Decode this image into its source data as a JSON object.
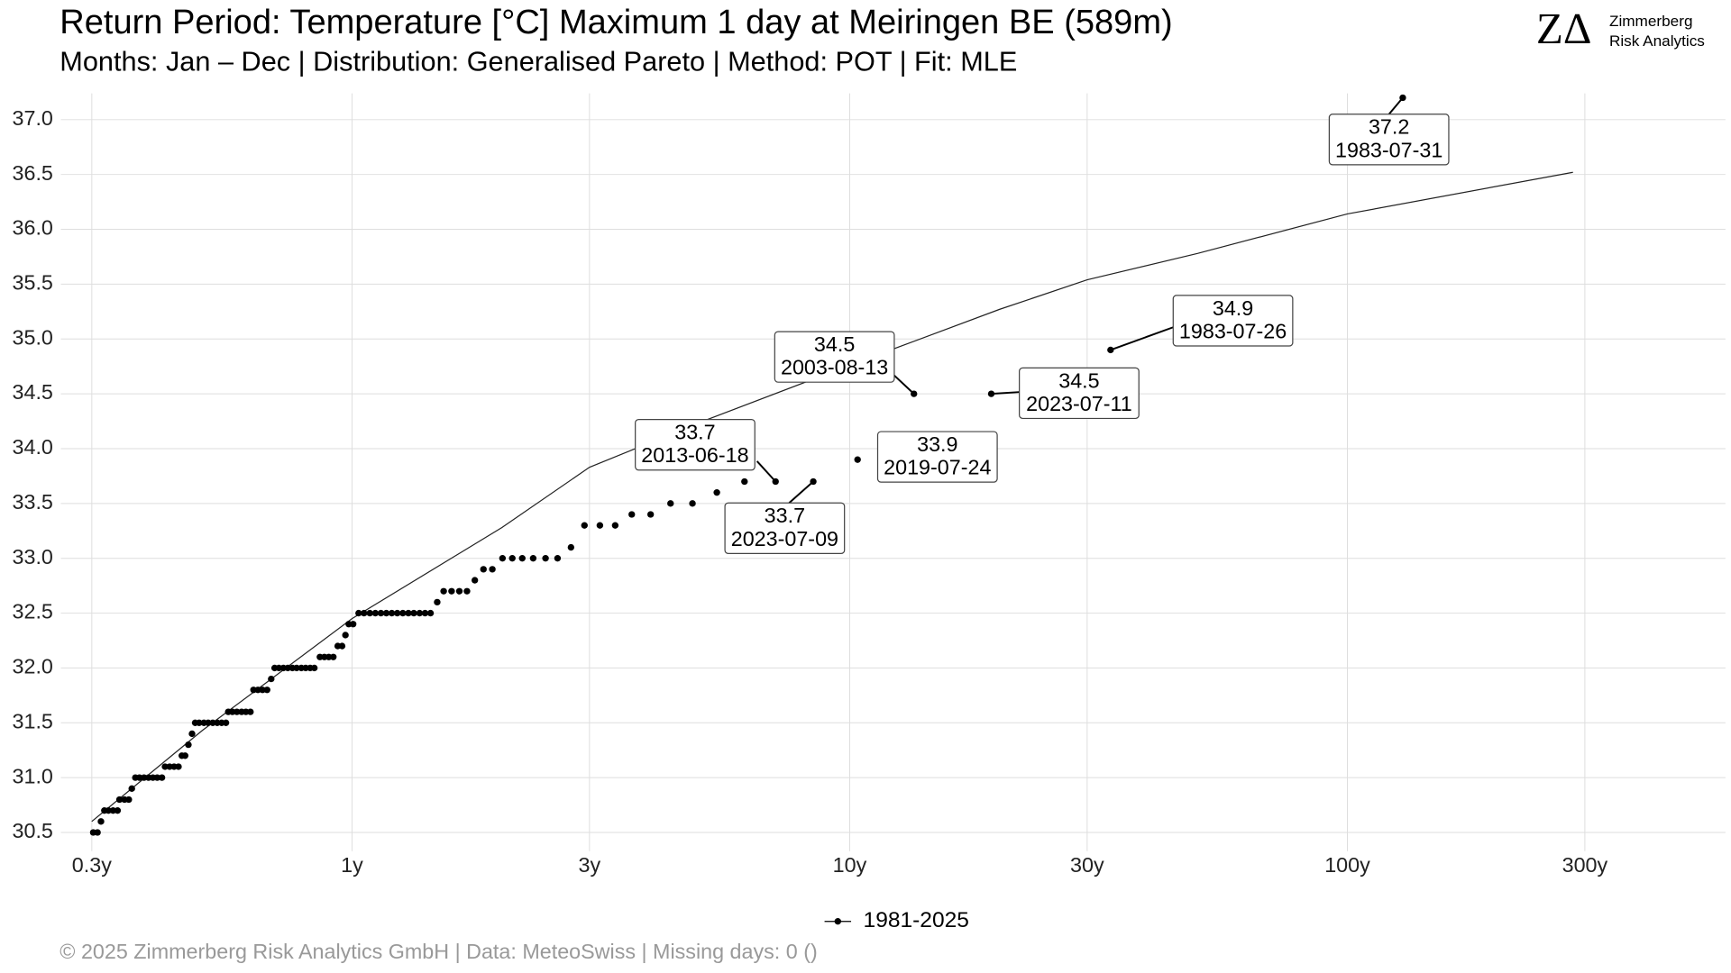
{
  "chart_data": {
    "type": "scatter",
    "title": "Return Period: Temperature [°C] Maximum 1 day at Meiringen  BE (589m)",
    "subtitle": "Months: Jan – Dec | Distribution: Generalised Pareto | Method: POT | Fit: MLE",
    "footer": "©  2025 Zimmerberg Risk Analytics GmbH | Data: MeteoSwiss | Missing days: 0 ()",
    "logo": {
      "mark": "ZΔ",
      "line1": "Zimmerberg",
      "line2": "Risk Analytics"
    },
    "x_log": true,
    "grid": true,
    "legend": "bottom",
    "xlim": [
      0.26,
      575
    ],
    "ylim": [
      30.33,
      37.24
    ],
    "xticks": [
      {
        "value": 0.3,
        "label": "0.3y"
      },
      {
        "value": 1,
        "label": "1y"
      },
      {
        "value": 3,
        "label": "3y"
      },
      {
        "value": 10,
        "label": "10y"
      },
      {
        "value": 30,
        "label": "30y"
      },
      {
        "value": 100,
        "label": "100y"
      },
      {
        "value": 300,
        "label": "300y"
      }
    ],
    "yticks": [
      30.5,
      {
        "value": 31,
        "label": "31.0"
      },
      31.5,
      {
        "value": 32,
        "label": "32.0"
      },
      32.5,
      {
        "value": 33,
        "label": "33.0"
      },
      33.5,
      {
        "value": 34,
        "label": "34.0"
      },
      34.5,
      {
        "value": 35,
        "label": "35.0"
      },
      35.5,
      {
        "value": 36,
        "label": "36.0"
      },
      36.5,
      {
        "value": 37,
        "label": "37.0"
      }
    ],
    "series": [
      {
        "name": "1981-2025",
        "color": "#000000",
        "x": [
          0.302,
          0.308,
          0.313,
          0.318,
          0.324,
          0.331,
          0.338,
          0.341,
          0.349,
          0.356,
          0.361,
          0.367,
          0.374,
          0.382,
          0.39,
          0.398,
          0.406,
          0.415,
          0.421,
          0.43,
          0.439,
          0.448,
          0.455,
          0.462,
          0.469,
          0.477,
          0.484,
          0.493,
          0.504,
          0.514,
          0.525,
          0.536,
          0.547,
          0.558,
          0.564,
          0.575,
          0.587,
          0.6,
          0.612,
          0.625,
          0.634,
          0.647,
          0.661,
          0.675,
          0.688,
          0.699,
          0.713,
          0.728,
          0.743,
          0.759,
          0.774,
          0.791,
          0.807,
          0.824,
          0.84,
          0.862,
          0.88,
          0.898,
          0.917,
          0.936,
          0.955,
          0.97,
          0.985,
          1.005,
          1.031,
          1.057,
          1.086,
          1.114,
          1.143,
          1.172,
          1.202,
          1.233,
          1.265,
          1.298,
          1.331,
          1.367,
          1.402,
          1.438,
          1.483,
          1.528,
          1.585,
          1.643,
          1.702,
          1.765,
          1.837,
          1.914,
          2.006,
          2.099,
          2.198,
          2.312,
          2.448,
          2.588,
          2.754,
          2.931,
          3.148,
          3.379,
          3.648,
          3.981,
          4.365,
          4.831,
          5.408,
          6.146,
          7.096,
          8.449,
          10.37,
          13.46,
          19.25,
          33.43,
          129.2
        ],
        "values": [
          30.5,
          30.5,
          30.6,
          30.7,
          30.7,
          30.7,
          30.7,
          30.8,
          30.8,
          30.8,
          30.9,
          31.0,
          31.0,
          31.0,
          31.0,
          31.0,
          31.0,
          31.0,
          31.1,
          31.1,
          31.1,
          31.1,
          31.2,
          31.2,
          31.3,
          31.4,
          31.5,
          31.5,
          31.5,
          31.5,
          31.5,
          31.5,
          31.5,
          31.5,
          31.6,
          31.6,
          31.6,
          31.6,
          31.6,
          31.6,
          31.8,
          31.8,
          31.8,
          31.8,
          31.9,
          32.0,
          32.0,
          32.0,
          32.0,
          32.0,
          32.0,
          32.0,
          32.0,
          32.0,
          32.0,
          32.1,
          32.1,
          32.1,
          32.1,
          32.2,
          32.2,
          32.3,
          32.4,
          32.4,
          32.5,
          32.5,
          32.5,
          32.5,
          32.5,
          32.5,
          32.5,
          32.5,
          32.5,
          32.5,
          32.5,
          32.5,
          32.5,
          32.5,
          32.6,
          32.7,
          32.7,
          32.7,
          32.7,
          32.8,
          32.9,
          32.9,
          33.0,
          33.0,
          33.0,
          33.0,
          33.0,
          33.0,
          33.1,
          33.3,
          33.3,
          33.3,
          33.4,
          33.4,
          33.5,
          33.5,
          33.6,
          33.7,
          33.7,
          33.7,
          33.9,
          34.5,
          34.5,
          34.9,
          37.2
        ]
      }
    ],
    "fit_line": {
      "color": "#222222",
      "x": [
        0.3,
        0.5,
        1,
        2,
        3,
        5,
        10,
        20,
        30,
        50,
        100,
        284
      ],
      "values": [
        30.6,
        31.43,
        32.45,
        33.28,
        33.83,
        34.24,
        34.76,
        35.27,
        35.54,
        35.78,
        36.14,
        36.52
      ]
    },
    "annotations": [
      {
        "value": 37.2,
        "date": "1983-07-31"
      },
      {
        "value": 34.9,
        "date": "1983-07-26"
      },
      {
        "value": 34.5,
        "date": "2003-08-13"
      },
      {
        "value": 34.5,
        "date": "2023-07-11"
      },
      {
        "value": 33.9,
        "date": "2019-07-24"
      },
      {
        "value": 33.7,
        "date": "2013-06-18"
      },
      {
        "value": 33.7,
        "date": "2023-07-09"
      }
    ]
  }
}
